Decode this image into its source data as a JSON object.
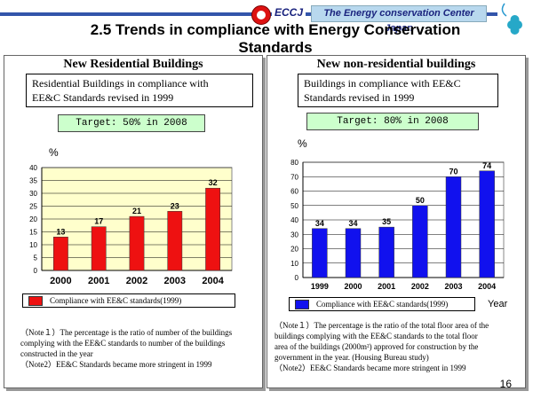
{
  "header": {
    "org_abbr": "ECCJ",
    "org_name": "The Energy conservation Center Japan",
    "title": "2.5 Trends in compliance with Energy Conservation Standards",
    "page_number": "16"
  },
  "residential": {
    "heading": "New Residential Buildings",
    "desc_line1": "Residential Buildings in compliance with",
    "desc_line2": "EE&C Standards revised in 1999",
    "target": "Target: 50% in 2008",
    "unit": "%",
    "note1_line1": "（Note１）The percentage is the ratio of number of the buildings",
    "note1_line2": "complying with the EE&C standards to number of the buildings",
    "note1_line3": "constructed  in the year",
    "note2": "（Note2）EE&C Standards became more stringent in 1999"
  },
  "nonresidential": {
    "heading": "New non-residential buildings",
    "desc_line1": "Buildings in compliance with EE&C",
    "desc_line2": "Standards revised in 1999",
    "target": "Target: 80% in 2008",
    "unit": "%",
    "xlabel": "Year",
    "note1_line1": "（Note１）The percentage is the ratio of the total floor area of the",
    "note1_line2": "buildings complying with the EE&C standards to the total floor",
    "note1_line3": "area of the buildings (2000m²) approved for construction by the",
    "note1_line4": "government in the year. (Housing Bureau study)",
    "note2": "（Note2）EE&C Standards became more stringent in 1999"
  },
  "colors": {
    "res_bar": "#ee1111",
    "nonres_bar": "#1111ee",
    "res_plot_bg": "#ffffcc"
  },
  "chart_data": [
    {
      "id": "res",
      "type": "bar",
      "title": "New Residential Buildings",
      "categories": [
        "2000",
        "2001",
        "2002",
        "2003",
        "2004"
      ],
      "values": [
        13,
        17,
        21,
        23,
        32
      ],
      "ylim": [
        0,
        40
      ],
      "yticks": [
        0,
        5,
        10,
        15,
        20,
        25,
        30,
        35,
        40
      ],
      "ylabel": "%",
      "xlabel": "",
      "legend": "Compliance with EE&C standards(1999)",
      "legend_position": "bottom",
      "grid": true
    },
    {
      "id": "nonres",
      "type": "bar",
      "title": "New non-residential buildings",
      "categories": [
        "1999",
        "2000",
        "2001",
        "2002",
        "2003",
        "2004"
      ],
      "values": [
        34,
        34,
        35,
        50,
        70,
        74
      ],
      "ylim": [
        0,
        80
      ],
      "yticks": [
        0,
        10,
        20,
        30,
        40,
        50,
        60,
        70,
        80
      ],
      "ylabel": "%",
      "xlabel": "Year",
      "legend": "Compliance with EE&C standards(1999)",
      "legend_position": "bottom",
      "grid": true
    }
  ]
}
